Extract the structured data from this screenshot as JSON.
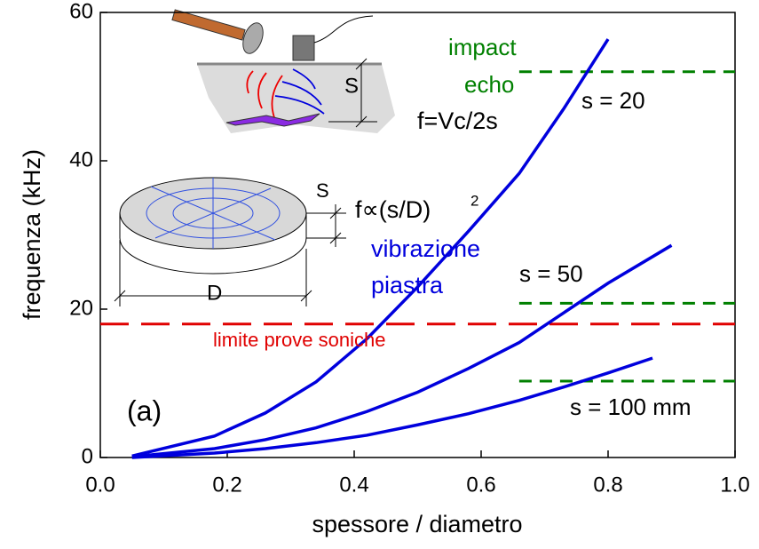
{
  "chart_data": {
    "type": "line",
    "xlabel": "spessore / diametro",
    "ylabel": "frequenza (kHz)",
    "xlim": [
      0,
      1
    ],
    "ylim": [
      0,
      60
    ],
    "xticks": [
      {
        "value": 0,
        "label": "0.0"
      },
      0.2,
      0.4,
      0.6,
      0.8,
      {
        "value": 1,
        "label": "1.0"
      }
    ],
    "yticks": [
      0,
      20,
      40,
      60
    ],
    "series": [
      {
        "name": "s = 20",
        "color": "#0000dd",
        "x": [
          0.05,
          0.18,
          0.26,
          0.34,
          0.42,
          0.5,
          0.58,
          0.66,
          0.73,
          0.8
        ],
        "values": [
          0.2,
          2.9,
          6,
          10.2,
          16,
          23,
          30.5,
          38.3,
          47,
          56.4
        ]
      },
      {
        "name": "s = 50",
        "color": "#0000dd",
        "x": [
          0.05,
          0.18,
          0.26,
          0.34,
          0.42,
          0.5,
          0.58,
          0.66,
          0.73,
          0.8,
          0.9
        ],
        "values": [
          0.1,
          1.2,
          2.4,
          4,
          6.2,
          8.8,
          12,
          15.5,
          19.5,
          23.5,
          28.6
        ]
      },
      {
        "name": "s = 100 mm",
        "color": "#0000dd",
        "x": [
          0.05,
          0.18,
          0.26,
          0.34,
          0.42,
          0.5,
          0.58,
          0.66,
          0.73,
          0.8,
          0.87
        ],
        "values": [
          0,
          0.6,
          1.2,
          2,
          3,
          4.4,
          5.9,
          7.7,
          9.5,
          11.4,
          13.4
        ]
      }
    ],
    "hlines": [
      {
        "y": 52,
        "x": [
          0.66,
          1
        ],
        "color": "#008000",
        "style": "green-dash"
      },
      {
        "y": 20.8,
        "x": [
          0.66,
          1
        ],
        "color": "#008000",
        "style": "green-dash"
      },
      {
        "y": 10.3,
        "x": [
          0.66,
          1
        ],
        "color": "#008000",
        "style": "green-dash"
      },
      {
        "y": 18,
        "x": [
          0,
          1
        ],
        "color": "#e00000",
        "style": "red-dash"
      }
    ],
    "annotations": [
      {
        "text": "impact",
        "color": "#008000"
      },
      {
        "text": "echo",
        "color": "#008000"
      },
      {
        "text": "f=Vc/2s",
        "color": "#000000"
      },
      {
        "text": "f∝(s/D)",
        "color": "#000000"
      },
      {
        "text": "2",
        "color": "#000000"
      },
      {
        "text": "vibrazione",
        "color": "#0000dd"
      },
      {
        "text": "piastra",
        "color": "#0000dd"
      },
      {
        "text": "limite prove soniche",
        "color": "#e00000"
      },
      {
        "text": "(a)",
        "color": "#000000"
      },
      {
        "text": "S",
        "color": "#000000"
      },
      {
        "text": "S",
        "color": "#000000"
      },
      {
        "text": "D",
        "color": "#000000"
      }
    ]
  }
}
